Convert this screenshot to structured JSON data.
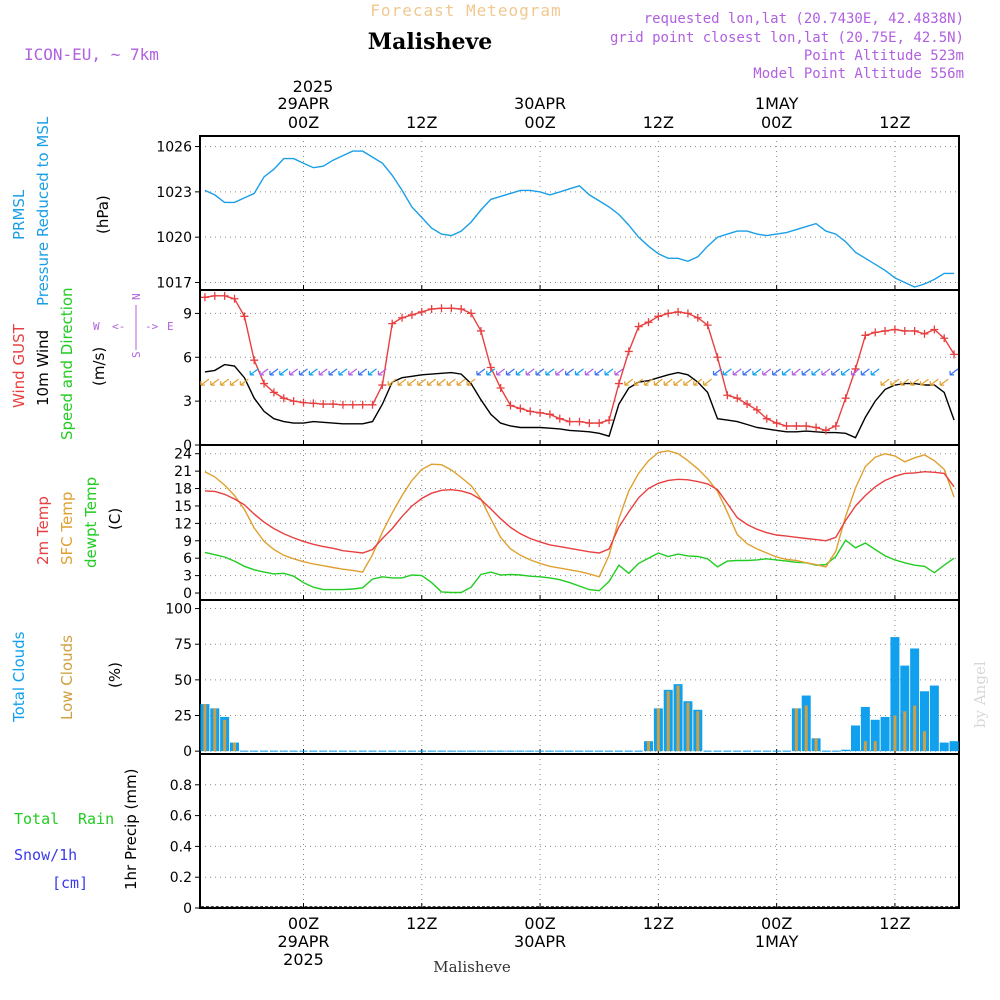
{
  "header": {
    "forecast_title": "Forecast Meteogram",
    "location": "Malisheve",
    "model": "ICON-EU, ~ 7km",
    "requested": "requested lon,lat (20.7430E, 42.4838N)",
    "grid_point": "grid point closest lon,lat (20.75E, 42.5N)",
    "point_altitude": "Point Altitude 523m",
    "model_altitude": "Model Point Altitude 556m",
    "credit": "by Angel",
    "footer_location": "Malisheve"
  },
  "colors": {
    "pressure": "#1a9fe6",
    "gust": "#e84040",
    "wind": "#000000",
    "direction": "#22cc22",
    "temp2m": "#e84040",
    "sfc": "#e0a030",
    "dewpt": "#22cc22",
    "total_clouds": "#10a0ee",
    "low_clouds": "#d0a040",
    "precip_total": "#22cc22",
    "precip_snow": "#3a3aee",
    "purple": "#b060e0"
  },
  "time_axis": {
    "top_year": "2025",
    "top_labels": [
      {
        "hour": 24,
        "line1": "29APR",
        "line2": "00Z"
      },
      {
        "hour": 36,
        "line1": "",
        "line2": "12Z"
      },
      {
        "hour": 48,
        "line1": "30APR",
        "line2": "00Z"
      },
      {
        "hour": 60,
        "line1": "",
        "line2": "12Z"
      },
      {
        "hour": 72,
        "line1": "1MAY",
        "line2": "00Z"
      },
      {
        "hour": 84,
        "line1": "",
        "line2": "12Z"
      }
    ],
    "bottom_labels": [
      {
        "hour": 24,
        "line1": "00Z",
        "line2": "29APR",
        "line3": "2025"
      },
      {
        "hour": 36,
        "line1": "12Z",
        "line2": "",
        "line3": ""
      },
      {
        "hour": 48,
        "line1": "00Z",
        "line2": "30APR",
        "line3": ""
      },
      {
        "hour": 60,
        "line1": "12Z",
        "line2": "",
        "line3": ""
      },
      {
        "hour": 72,
        "line1": "00Z",
        "line2": "1MAY",
        "line3": ""
      },
      {
        "hour": 84,
        "line1": "12Z",
        "line2": "",
        "line3": ""
      }
    ]
  },
  "panels": {
    "pressure": {
      "label_a": "PRMSL",
      "label_b": "Pressure Reduced to MSL",
      "unit": "(hPa)"
    },
    "wind": {
      "label_gust": "Wind GUST",
      "label_wind": "10m Wind",
      "label_dir": "Speed and Direction",
      "unit": "(m/s)",
      "compass_n": "N",
      "compass_s": "S",
      "compass_w": "W",
      "compass_e": "E"
    },
    "temp": {
      "label_2m": "2m Temp",
      "label_sfc": "SFC Temp",
      "label_dew": "dewpt Temp",
      "unit": "(C)"
    },
    "clouds": {
      "label_total": "Total Clouds",
      "label_low": "Low Clouds",
      "unit": "(%)"
    },
    "precip": {
      "label_total": "Total",
      "label_rain": "Rain",
      "label_snow": "Snow/1h",
      "label_cm": "[cm]",
      "unit": "1hr Precip (mm)"
    }
  },
  "chart_data": [
    {
      "type": "line",
      "name": "pressure",
      "x_range": [
        13.5,
        90.5
      ],
      "ylim": [
        1016.5,
        1026.7
      ],
      "yticks": [
        1017,
        1020,
        1023,
        1026
      ],
      "x": [
        14,
        15,
        16,
        17,
        18,
        19,
        20,
        21,
        22,
        23,
        24,
        25,
        26,
        27,
        28,
        29,
        30,
        31,
        32,
        33,
        34,
        35,
        36,
        37,
        38,
        39,
        40,
        41,
        42,
        43,
        44,
        45,
        46,
        47,
        48,
        49,
        50,
        51,
        52,
        53,
        54,
        55,
        56,
        57,
        58,
        59,
        60,
        61,
        62,
        63,
        64,
        65,
        66,
        67,
        68,
        69,
        70,
        71,
        72,
        73,
        74,
        75,
        76,
        77,
        78,
        79,
        80,
        81,
        82,
        83,
        84,
        85,
        86,
        87,
        88,
        89,
        90
      ],
      "values": [
        1023.1,
        1022.8,
        1022.3,
        1022.3,
        1022.6,
        1022.9,
        1024.0,
        1024.5,
        1025.2,
        1025.2,
        1024.9,
        1024.6,
        1024.7,
        1025.1,
        1025.4,
        1025.7,
        1025.7,
        1025.3,
        1024.9,
        1024.1,
        1023.1,
        1022.0,
        1021.3,
        1020.6,
        1020.2,
        1020.1,
        1020.4,
        1021.0,
        1021.8,
        1022.5,
        1022.7,
        1022.9,
        1023.1,
        1023.1,
        1023.0,
        1022.8,
        1023.0,
        1023.2,
        1023.4,
        1022.8,
        1022.4,
        1022.0,
        1021.5,
        1020.8,
        1020.0,
        1019.4,
        1018.9,
        1018.6,
        1018.6,
        1018.4,
        1018.7,
        1019.4,
        1020.0,
        1020.2,
        1020.4,
        1020.4,
        1020.2,
        1020.1,
        1020.2,
        1020.3,
        1020.5,
        1020.7,
        1020.9,
        1020.4,
        1020.2,
        1019.7,
        1019.0,
        1018.6,
        1018.2,
        1017.8,
        1017.3,
        1017.0,
        1016.7,
        1016.9,
        1017.2,
        1017.6,
        1017.6
      ]
    },
    {
      "type": "line",
      "name": "wind",
      "x_range": [
        13.5,
        90.5
      ],
      "ylim": [
        0,
        10.6
      ],
      "yticks": [
        0,
        3,
        6,
        9
      ],
      "x": [
        14,
        15,
        16,
        17,
        18,
        19,
        20,
        21,
        22,
        23,
        24,
        25,
        26,
        27,
        28,
        29,
        30,
        31,
        32,
        33,
        34,
        35,
        36,
        37,
        38,
        39,
        40,
        41,
        42,
        43,
        44,
        45,
        46,
        47,
        48,
        49,
        50,
        51,
        52,
        53,
        54,
        55,
        56,
        57,
        58,
        59,
        60,
        61,
        62,
        63,
        64,
        65,
        66,
        67,
        68,
        69,
        70,
        71,
        72,
        73,
        74,
        75,
        76,
        77,
        78,
        79,
        80,
        81,
        82,
        83,
        84,
        85,
        86,
        87,
        88,
        89,
        90
      ],
      "gust": [
        10.1,
        10.2,
        10.2,
        10.0,
        8.8,
        5.8,
        4.2,
        3.6,
        3.2,
        3.0,
        2.9,
        2.85,
        2.8,
        2.8,
        2.75,
        2.75,
        2.75,
        2.75,
        4.1,
        8.3,
        8.7,
        8.9,
        9.1,
        9.3,
        9.35,
        9.35,
        9.3,
        9.0,
        7.8,
        5.3,
        3.9,
        2.7,
        2.5,
        2.3,
        2.2,
        2.1,
        1.8,
        1.6,
        1.6,
        1.5,
        1.5,
        1.7,
        4.2,
        6.4,
        8.1,
        8.4,
        8.8,
        9.0,
        9.1,
        9.0,
        8.7,
        8.2,
        6.0,
        3.4,
        3.2,
        2.8,
        2.4,
        1.8,
        1.5,
        1.3,
        1.3,
        1.3,
        1.2,
        1.0,
        1.3,
        3.2,
        5.2,
        7.5,
        7.7,
        7.8,
        7.9,
        7.8,
        7.8,
        7.6,
        7.9,
        7.3,
        6.2
      ],
      "wind": [
        5.0,
        5.1,
        5.5,
        5.4,
        4.6,
        3.2,
        2.3,
        1.8,
        1.6,
        1.5,
        1.5,
        1.6,
        1.55,
        1.5,
        1.45,
        1.45,
        1.45,
        1.6,
        2.8,
        4.3,
        4.6,
        4.7,
        4.8,
        4.85,
        4.9,
        4.95,
        4.85,
        4.2,
        3.1,
        2.1,
        1.5,
        1.3,
        1.2,
        1.2,
        1.2,
        1.15,
        1.1,
        1.0,
        0.95,
        0.9,
        0.8,
        0.6,
        2.8,
        3.9,
        4.3,
        4.4,
        4.6,
        4.8,
        4.95,
        4.8,
        4.3,
        3.6,
        1.8,
        1.7,
        1.6,
        1.4,
        1.2,
        1.1,
        1.0,
        0.9,
        0.9,
        0.95,
        0.9,
        0.85,
        0.85,
        0.8,
        0.5,
        1.9,
        3.0,
        3.8,
        4.1,
        4.2,
        4.2,
        4.1,
        4.1,
        3.6,
        1.7
      ]
    },
    {
      "type": "line",
      "name": "temperature",
      "x_range": [
        13.5,
        90.5
      ],
      "ylim": [
        -1.2,
        25.5
      ],
      "yticks": [
        0,
        3,
        6,
        9,
        12,
        15,
        18,
        21,
        24
      ],
      "x": [
        14,
        15,
        16,
        17,
        18,
        19,
        20,
        21,
        22,
        23,
        24,
        25,
        26,
        27,
        28,
        29,
        30,
        31,
        32,
        33,
        34,
        35,
        36,
        37,
        38,
        39,
        40,
        41,
        42,
        43,
        44,
        45,
        46,
        47,
        48,
        49,
        50,
        51,
        52,
        53,
        54,
        55,
        56,
        57,
        58,
        59,
        60,
        61,
        62,
        63,
        64,
        65,
        66,
        67,
        68,
        69,
        70,
        71,
        72,
        73,
        74,
        75,
        76,
        77,
        78,
        79,
        80,
        81,
        82,
        83,
        84,
        85,
        86,
        87,
        88,
        89,
        90
      ],
      "temp2m": [
        17.6,
        17.5,
        17.0,
        16.2,
        15.2,
        13.6,
        12.2,
        11.1,
        10.2,
        9.5,
        8.9,
        8.4,
        8.0,
        7.7,
        7.3,
        7.1,
        6.9,
        7.5,
        9.4,
        11.1,
        13.2,
        15.0,
        16.3,
        17.2,
        17.7,
        17.8,
        17.6,
        17.1,
        16.1,
        14.5,
        12.8,
        11.3,
        10.2,
        9.4,
        8.8,
        8.3,
        8.0,
        7.7,
        7.4,
        7.1,
        6.9,
        7.6,
        11.4,
        14.0,
        16.4,
        18.0,
        18.9,
        19.4,
        19.6,
        19.5,
        19.2,
        18.8,
        17.8,
        15.4,
        13.0,
        11.8,
        11.0,
        10.4,
        10.0,
        9.8,
        9.6,
        9.4,
        9.2,
        9.0,
        9.6,
        12.5,
        15.0,
        16.8,
        18.3,
        19.4,
        20.1,
        20.6,
        20.7,
        20.9,
        20.8,
        20.6,
        18.3
      ],
      "sfc": [
        20.9,
        20.0,
        18.6,
        16.8,
        14.4,
        11.2,
        8.9,
        7.5,
        6.5,
        5.9,
        5.4,
        5.0,
        4.7,
        4.4,
        4.1,
        3.9,
        3.6,
        6.6,
        10.5,
        13.8,
        16.8,
        19.4,
        21.3,
        22.2,
        22.1,
        21.2,
        19.9,
        18.5,
        16.2,
        12.8,
        9.6,
        7.6,
        6.5,
        5.7,
        5.1,
        4.6,
        4.3,
        4.0,
        3.7,
        3.3,
        2.8,
        6.5,
        12.8,
        17.6,
        20.6,
        22.8,
        24.2,
        24.5,
        24.0,
        22.8,
        21.4,
        19.7,
        17.5,
        13.9,
        10.1,
        8.5,
        7.6,
        6.9,
        6.2,
        5.8,
        5.6,
        5.2,
        4.9,
        4.5,
        7.2,
        13.2,
        18.1,
        21.8,
        23.4,
        24.0,
        23.6,
        22.6,
        23.3,
        23.8,
        22.8,
        21.3,
        16.5
      ],
      "dewpt": [
        7.0,
        6.6,
        6.2,
        5.5,
        4.6,
        4.0,
        3.6,
        3.3,
        3.4,
        2.9,
        1.8,
        1.0,
        0.6,
        0.6,
        0.6,
        0.7,
        0.9,
        2.4,
        2.8,
        2.6,
        2.6,
        3.1,
        3.0,
        1.8,
        0.2,
        0.1,
        0.1,
        1.0,
        3.2,
        3.6,
        3.1,
        3.2,
        3.1,
        2.9,
        2.8,
        2.6,
        2.3,
        1.8,
        1.2,
        0.6,
        0.4,
        2.0,
        4.8,
        3.4,
        5.1,
        6.0,
        6.9,
        6.3,
        6.7,
        6.4,
        6.3,
        5.9,
        4.5,
        5.5,
        5.6,
        5.6,
        5.7,
        5.9,
        5.7,
        5.5,
        5.3,
        5.2,
        4.8,
        4.9,
        6.3,
        9.1,
        7.8,
        8.6,
        7.5,
        6.4,
        5.7,
        5.2,
        4.8,
        4.6,
        3.5,
        4.8,
        6.0
      ]
    },
    {
      "type": "bar",
      "name": "clouds",
      "x_range": [
        13.5,
        90.5
      ],
      "ylim": [
        -2,
        106
      ],
      "yticks": [
        0,
        25,
        50,
        75,
        100
      ],
      "x": [
        14,
        15,
        16,
        17,
        18,
        19,
        20,
        21,
        22,
        23,
        24,
        25,
        26,
        27,
        28,
        29,
        30,
        31,
        32,
        33,
        34,
        35,
        36,
        37,
        38,
        39,
        40,
        41,
        42,
        43,
        44,
        45,
        46,
        47,
        48,
        49,
        50,
        51,
        52,
        53,
        54,
        55,
        56,
        57,
        58,
        59,
        60,
        61,
        62,
        63,
        64,
        65,
        66,
        67,
        68,
        69,
        70,
        71,
        72,
        73,
        74,
        75,
        76,
        77,
        78,
        79,
        80,
        81,
        82,
        83,
        84,
        85,
        86,
        87,
        88,
        89,
        90
      ],
      "total": [
        33,
        30,
        24,
        6,
        0,
        0,
        0,
        0,
        0,
        0,
        0,
        0,
        0,
        0,
        0,
        0,
        0,
        0,
        0,
        0,
        0,
        0,
        0,
        0,
        0,
        0,
        0,
        0,
        0,
        0,
        0,
        0,
        0,
        0,
        0,
        0,
        0,
        0,
        0,
        0,
        0,
        0,
        0,
        0,
        0,
        7,
        30,
        43,
        47,
        35,
        29,
        0,
        0,
        0,
        0,
        0,
        0,
        0,
        0,
        0,
        30,
        39,
        9,
        0,
        0,
        1,
        18,
        31,
        22,
        24,
        80,
        60,
        72,
        42,
        46,
        6,
        7
      ],
      "low": [
        33,
        30,
        22,
        6,
        0,
        0,
        0,
        0,
        0,
        0,
        0,
        0,
        0,
        0,
        0,
        0,
        0,
        0,
        0,
        0,
        0,
        0,
        0,
        0,
        0,
        0,
        0,
        0,
        0,
        0,
        0,
        0,
        0,
        0,
        0,
        0,
        0,
        0,
        0,
        0,
        0,
        0,
        0,
        0,
        0,
        7,
        30,
        42,
        46,
        34,
        28,
        0,
        0,
        0,
        0,
        0,
        0,
        0,
        0,
        0,
        30,
        32,
        9,
        0,
        0,
        0,
        0,
        7,
        7,
        0,
        25,
        28,
        32,
        14,
        0,
        0,
        0
      ]
    },
    {
      "type": "bar",
      "name": "precipitation",
      "x_range": [
        13.5,
        90.5
      ],
      "ylim": [
        0,
        1.0
      ],
      "yticks": [
        0,
        0.2,
        0.4,
        0.6,
        0.8
      ],
      "ytick_labels": [
        "0",
        "0.2",
        "0.4",
        "0.6",
        "0.8"
      ],
      "x": [
        14,
        15,
        16,
        17,
        18,
        19,
        20,
        21,
        22,
        23,
        24,
        25,
        26,
        27,
        28,
        29,
        30,
        31,
        32,
        33,
        34,
        35,
        36,
        37,
        38,
        39,
        40,
        41,
        42,
        43,
        44,
        45,
        46,
        47,
        48,
        49,
        50,
        51,
        52,
        53,
        54,
        55,
        56,
        57,
        58,
        59,
        60,
        61,
        62,
        63,
        64,
        65,
        66,
        67,
        68,
        69,
        70,
        71,
        72,
        73,
        74,
        75,
        76,
        77,
        78,
        79,
        80,
        81,
        82,
        83,
        84,
        85,
        86,
        87,
        88,
        89,
        90
      ],
      "total": [
        0,
        0,
        0,
        0,
        0,
        0,
        0,
        0,
        0,
        0,
        0,
        0,
        0,
        0,
        0,
        0,
        0,
        0,
        0,
        0,
        0,
        0,
        0,
        0,
        0,
        0,
        0,
        0,
        0,
        0,
        0,
        0,
        0,
        0,
        0,
        0,
        0,
        0,
        0,
        0,
        0,
        0,
        0,
        0,
        0,
        0,
        0,
        0,
        0,
        0,
        0,
        0,
        0,
        0,
        0,
        0,
        0,
        0,
        0,
        0,
        0,
        0,
        0,
        0,
        0,
        0,
        0,
        0,
        0,
        0,
        0,
        0,
        0,
        0,
        0,
        0,
        0
      ]
    }
  ]
}
